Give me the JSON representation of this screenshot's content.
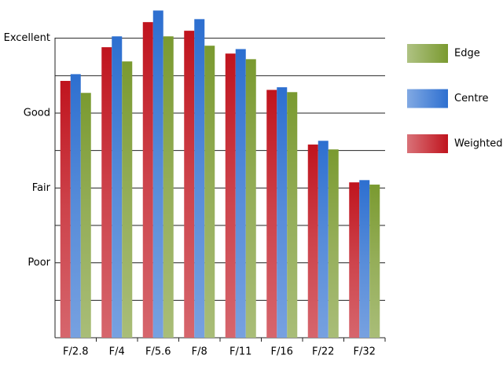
{
  "chart_data": {
    "type": "bar",
    "categories": [
      "F/2.8",
      "F/4",
      "F/5.6",
      "F/8",
      "F/11",
      "F/16",
      "F/22",
      "F/32"
    ],
    "series": [
      {
        "name": "Weighted",
        "color": "#c0141e",
        "values": [
          6.86,
          7.76,
          8.43,
          8.2,
          7.59,
          6.62,
          5.16,
          4.15
        ]
      },
      {
        "name": "Centre",
        "color": "#2d6fd0",
        "values": [
          7.04,
          8.05,
          8.74,
          8.51,
          7.71,
          6.69,
          5.26,
          4.21
        ]
      },
      {
        "name": "Edge",
        "color": "#7a9a30",
        "values": [
          6.54,
          7.38,
          8.05,
          7.8,
          7.44,
          6.56,
          5.03,
          4.09
        ]
      }
    ],
    "ylim": [
      0,
      9
    ],
    "yticks": [
      0,
      {
        "value": 1,
        "label": null
      },
      {
        "value": 2,
        "label": "Poor"
      },
      {
        "value": 3,
        "label": null
      },
      {
        "value": 4,
        "label": "Fair"
      },
      {
        "value": 5,
        "label": null
      },
      {
        "value": 6,
        "label": "Good"
      },
      {
        "value": 7,
        "label": null
      },
      {
        "value": 8,
        "label": "Excellent"
      }
    ],
    "grid": true,
    "legend": "right"
  }
}
